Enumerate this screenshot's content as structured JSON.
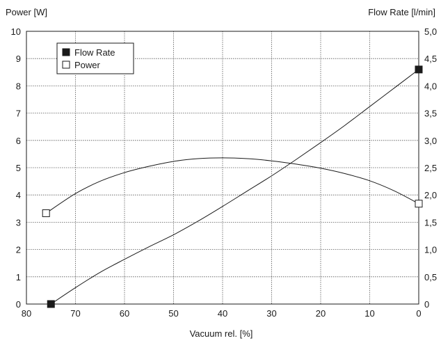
{
  "chart_data": {
    "type": "line",
    "title": "",
    "xlabel": "Vacuum rel. [%]",
    "ylabel_left": "Power [W]",
    "ylabel_right": "Flow Rate [l/min]",
    "xlim": [
      80,
      0
    ],
    "ylim_left": [
      0,
      10
    ],
    "ylim_right": [
      0,
      5
    ],
    "x_ticks": [
      "80",
      "70",
      "60",
      "50",
      "40",
      "30",
      "20",
      "10",
      "0"
    ],
    "y_left_ticks": [
      "0",
      "1",
      "2",
      "3",
      "4",
      "5",
      "6",
      "7",
      "8",
      "9",
      "10"
    ],
    "y_right_ticks": [
      "0",
      "0,5",
      "1,0",
      "1,5",
      "2,0",
      "2,5",
      "3,0",
      "3,5",
      "4,0",
      "4,5",
      "5,0"
    ],
    "grid": true,
    "legend_position": "top-left",
    "legend": [
      {
        "label": "Flow Rate",
        "marker": "filled-square"
      },
      {
        "label": "Power",
        "marker": "open-square"
      }
    ],
    "series": [
      {
        "name": "Flow Rate",
        "axis": "right",
        "marker": "filled-square",
        "endpoints": [
          [
            75,
            0.0
          ],
          [
            0,
            4.3
          ]
        ],
        "x": [
          75,
          70,
          65,
          60,
          55,
          50,
          45,
          40,
          35,
          30,
          25,
          20,
          15,
          10,
          5,
          0
        ],
        "y": [
          0.0,
          0.3,
          0.58,
          0.82,
          1.05,
          1.27,
          1.52,
          1.79,
          2.07,
          2.35,
          2.65,
          2.96,
          3.28,
          3.62,
          3.96,
          4.3
        ]
      },
      {
        "name": "Power",
        "axis": "left",
        "marker": "open-square",
        "endpoints": [
          [
            76,
            3.33
          ],
          [
            0,
            3.68
          ]
        ],
        "x": [
          76,
          70,
          65,
          60,
          55,
          50,
          45,
          40,
          35,
          30,
          25,
          20,
          15,
          10,
          5,
          0
        ],
        "y": [
          3.33,
          4.05,
          4.5,
          4.82,
          5.05,
          5.23,
          5.33,
          5.36,
          5.33,
          5.25,
          5.13,
          4.98,
          4.78,
          4.52,
          4.15,
          3.68
        ]
      }
    ],
    "colors": {
      "line": "#1a1a1a",
      "grid": "#555555",
      "frame": "#1a1a1a",
      "background": "#ffffff"
    }
  }
}
